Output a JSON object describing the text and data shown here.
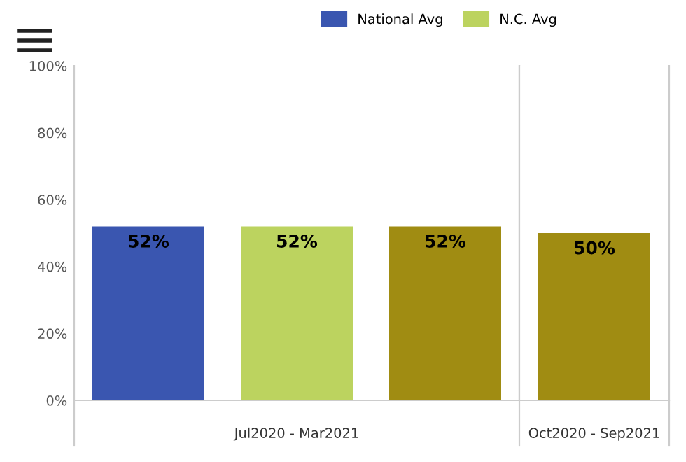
{
  "chart_data": [
    {
      "type": "bar",
      "categories": [
        "Jul2020 - Mar2021"
      ],
      "ylim": [
        0,
        100
      ],
      "yticks": [
        {
          "value": 0,
          "label": "0%"
        },
        {
          "value": 20,
          "label": "20%"
        },
        {
          "value": 40,
          "label": "40%"
        },
        {
          "value": 60,
          "label": "60%"
        },
        {
          "value": 80,
          "label": "80%"
        },
        {
          "value": 100,
          "label": "100%"
        }
      ],
      "legend": "top right",
      "grid": false,
      "series": [
        {
          "name": "National Avg",
          "color": "#3a56b0",
          "values": [
            52
          ],
          "value_labels": [
            "52%"
          ]
        },
        {
          "name": "N.C. Avg",
          "color": "#bcd35f",
          "values": [
            52
          ],
          "value_labels": [
            "52%"
          ]
        },
        {
          "color": "#a08c12",
          "values": [
            52
          ],
          "value_labels": [
            "52%"
          ]
        }
      ]
    },
    {
      "type": "bar",
      "categories": [
        "Oct2020 - Sep2021"
      ],
      "ylim": [
        0,
        100
      ],
      "tick_labels": "x",
      "grid": false,
      "series": [
        {
          "color": "#a08c12",
          "values": [
            50
          ],
          "value_labels": [
            "50%"
          ]
        }
      ]
    }
  ]
}
